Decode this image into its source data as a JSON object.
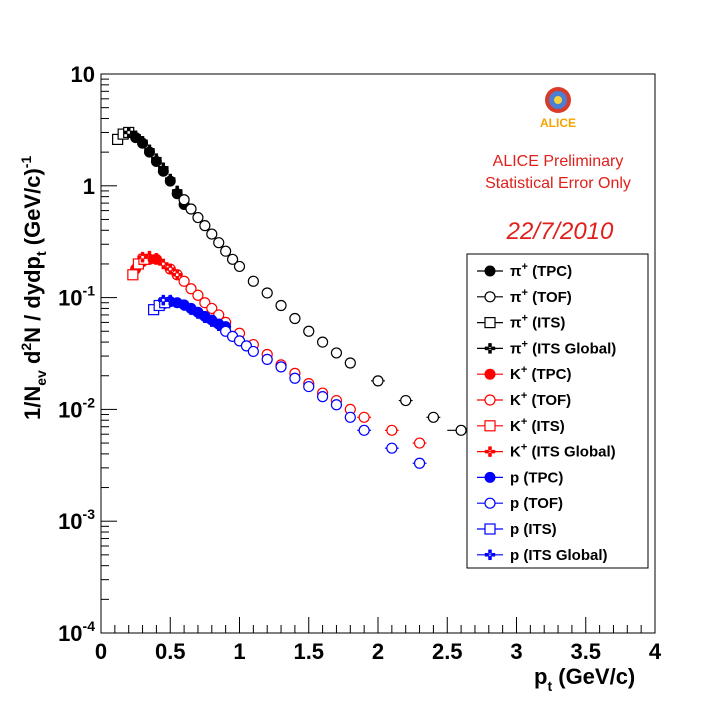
{
  "chart_data": {
    "type": "scatter",
    "ylog": true,
    "xlabel": "p",
    "xlabel_sub": "t",
    "xlabel_unit": " (GeV/c)",
    "ylabel": "1/N_ev d²N / dydp_t (GeV/c)⁻¹",
    "xlim": [
      0,
      4
    ],
    "ylim": [
      0.0001,
      10
    ],
    "x_ticks": [
      {
        "value": 0,
        "label": "0"
      },
      {
        "value": 0.5,
        "label": "0.5"
      },
      {
        "value": 1,
        "label": "1"
      },
      {
        "value": 1.5,
        "label": "1.5"
      },
      {
        "value": 2,
        "label": "2"
      },
      {
        "value": 2.5,
        "label": "2.5"
      },
      {
        "value": 3,
        "label": "3"
      },
      {
        "value": 3.5,
        "label": "3.5"
      },
      {
        "value": 4,
        "label": "4"
      }
    ],
    "y_ticks": [
      {
        "value": 10,
        "base": "10",
        "exp": ""
      },
      {
        "value": 1,
        "base": "1",
        "exp": ""
      },
      {
        "value": 0.1,
        "base": "10",
        "exp": "-1"
      },
      {
        "value": 0.01,
        "base": "10",
        "exp": "-2"
      },
      {
        "value": 0.001,
        "base": "10",
        "exp": "-3"
      },
      {
        "value": 0.0001,
        "base": "10",
        "exp": "-4"
      }
    ],
    "colors": {
      "pion": "#000000",
      "kaon": "#ff0000",
      "proton": "#0000ff"
    },
    "series": [
      {
        "name": "π⁺ (TPC)",
        "color": "#000000",
        "marker": "filled-circle",
        "x": [
          0.25,
          0.3,
          0.35,
          0.4,
          0.45,
          0.5,
          0.55,
          0.6
        ],
        "y": [
          2.7,
          2.4,
          2.0,
          1.65,
          1.35,
          1.1,
          0.85,
          0.68
        ]
      },
      {
        "name": "π⁺ (TOF)",
        "color": "#000000",
        "marker": "open-circle",
        "x": [
          0.6,
          0.65,
          0.7,
          0.75,
          0.8,
          0.85,
          0.9,
          0.95,
          1.0,
          1.1,
          1.2,
          1.3,
          1.4,
          1.5,
          1.6,
          1.7,
          1.8,
          2.0,
          2.2,
          2.4,
          2.6
        ],
        "y": [
          0.75,
          0.62,
          0.52,
          0.44,
          0.37,
          0.31,
          0.26,
          0.22,
          0.19,
          0.14,
          0.11,
          0.085,
          0.065,
          0.05,
          0.04,
          0.032,
          0.026,
          0.018,
          0.012,
          0.0085,
          0.0065
        ],
        "xerr": [
          0,
          0,
          0,
          0,
          0,
          0,
          0,
          0,
          0,
          0,
          0,
          0,
          0,
          0,
          0,
          0,
          0,
          0.05,
          0.05,
          0.05,
          0.1
        ]
      },
      {
        "name": "π⁺ (ITS)",
        "color": "#000000",
        "marker": "open-square",
        "x": [
          0.12,
          0.16,
          0.2
        ],
        "y": [
          2.6,
          2.9,
          3.0
        ]
      },
      {
        "name": "π⁺ (ITS Global)",
        "color": "#000000",
        "marker": "cross",
        "x": [
          0.2,
          0.25,
          0.3,
          0.35,
          0.4,
          0.45,
          0.5,
          0.55
        ],
        "y": [
          3.0,
          2.8,
          2.5,
          2.1,
          1.75,
          1.45,
          1.15,
          0.9
        ]
      },
      {
        "name": "K⁺ (TPC)",
        "color": "#ff0000",
        "marker": "filled-circle",
        "x": [
          0.25,
          0.3,
          0.35,
          0.4
        ],
        "y": [
          0.18,
          0.21,
          0.22,
          0.22
        ]
      },
      {
        "name": "K⁺ (TOF)",
        "color": "#ff0000",
        "marker": "open-circle",
        "x": [
          0.5,
          0.55,
          0.6,
          0.65,
          0.7,
          0.75,
          0.8,
          0.85,
          0.9,
          1.0,
          1.1,
          1.2,
          1.3,
          1.4,
          1.5,
          1.6,
          1.7,
          1.8,
          1.9,
          2.1,
          2.3
        ],
        "y": [
          0.18,
          0.16,
          0.14,
          0.12,
          0.105,
          0.09,
          0.08,
          0.07,
          0.06,
          0.048,
          0.038,
          0.031,
          0.025,
          0.021,
          0.017,
          0.014,
          0.012,
          0.01,
          0.0085,
          0.0065,
          0.005
        ],
        "xerr": [
          0,
          0,
          0,
          0,
          0,
          0,
          0,
          0,
          0,
          0,
          0,
          0,
          0,
          0,
          0,
          0,
          0,
          0,
          0.05,
          0.05,
          0.05
        ]
      },
      {
        "name": "K⁺ (ITS)",
        "color": "#ff0000",
        "marker": "open-square",
        "x": [
          0.23,
          0.27,
          0.31
        ],
        "y": [
          0.16,
          0.2,
          0.22
        ]
      },
      {
        "name": "K⁺ (ITS Global)",
        "color": "#ff0000",
        "marker": "cross",
        "x": [
          0.3,
          0.35,
          0.4,
          0.45,
          0.5,
          0.55
        ],
        "y": [
          0.23,
          0.235,
          0.225,
          0.2,
          0.18,
          0.16
        ]
      },
      {
        "name": "p (TPC)",
        "color": "#0000ff",
        "marker": "filled-circle",
        "x": [
          0.45,
          0.5,
          0.55,
          0.6,
          0.65,
          0.7,
          0.75,
          0.8,
          0.85,
          0.9
        ],
        "y": [
          0.088,
          0.092,
          0.09,
          0.086,
          0.08,
          0.074,
          0.068,
          0.063,
          0.058,
          0.055
        ]
      },
      {
        "name": "p (TOF)",
        "color": "#0000ff",
        "marker": "open-circle",
        "x": [
          0.9,
          0.95,
          1.0,
          1.05,
          1.1,
          1.2,
          1.3,
          1.4,
          1.5,
          1.6,
          1.7,
          1.8,
          1.9,
          2.1,
          2.3
        ],
        "y": [
          0.05,
          0.045,
          0.041,
          0.037,
          0.033,
          0.028,
          0.024,
          0.019,
          0.016,
          0.013,
          0.011,
          0.0085,
          0.0065,
          0.0045,
          0.0033
        ],
        "xerr": [
          0,
          0,
          0,
          0,
          0,
          0,
          0,
          0,
          0,
          0,
          0,
          0,
          0.05,
          0.05,
          0.05
        ]
      },
      {
        "name": "p (ITS)",
        "color": "#0000ff",
        "marker": "open-square",
        "x": [
          0.38,
          0.42,
          0.46
        ],
        "y": [
          0.078,
          0.085,
          0.09
        ]
      },
      {
        "name": "p (ITS Global)",
        "color": "#0000ff",
        "marker": "cross",
        "x": [
          0.45,
          0.5,
          0.55,
          0.6,
          0.65,
          0.7,
          0.75,
          0.8,
          0.85
        ],
        "y": [
          0.095,
          0.095,
          0.09,
          0.085,
          0.078,
          0.072,
          0.066,
          0.061,
          0.056
        ]
      }
    ]
  },
  "annotations": {
    "preliminary_line1": "ALICE Preliminary",
    "preliminary_line2": "Statistical Error Only",
    "date": "22/7/2010",
    "logo_text": "ALICE"
  },
  "legend": [
    {
      "particle": "π",
      "sup": "+",
      "det": " (TPC)"
    },
    {
      "particle": "π",
      "sup": "+",
      "det": " (TOF)"
    },
    {
      "particle": "π",
      "sup": "+",
      "det": " (ITS)"
    },
    {
      "particle": "π",
      "sup": "+",
      "det": " (ITS Global)"
    },
    {
      "particle": "K",
      "sup": "+",
      "det": " (TPC)"
    },
    {
      "particle": "K",
      "sup": "+",
      "det": " (TOF)"
    },
    {
      "particle": "K",
      "sup": "+",
      "det": " (ITS)"
    },
    {
      "particle": "K",
      "sup": "+",
      "det": " (ITS Global)"
    },
    {
      "particle": "p",
      "sup": "",
      "det": " (TPC)"
    },
    {
      "particle": "p",
      "sup": "",
      "det": " (TOF)"
    },
    {
      "particle": "p",
      "sup": "",
      "det": " (ITS)"
    },
    {
      "particle": "p",
      "sup": "",
      "det": " (ITS Global)"
    }
  ]
}
